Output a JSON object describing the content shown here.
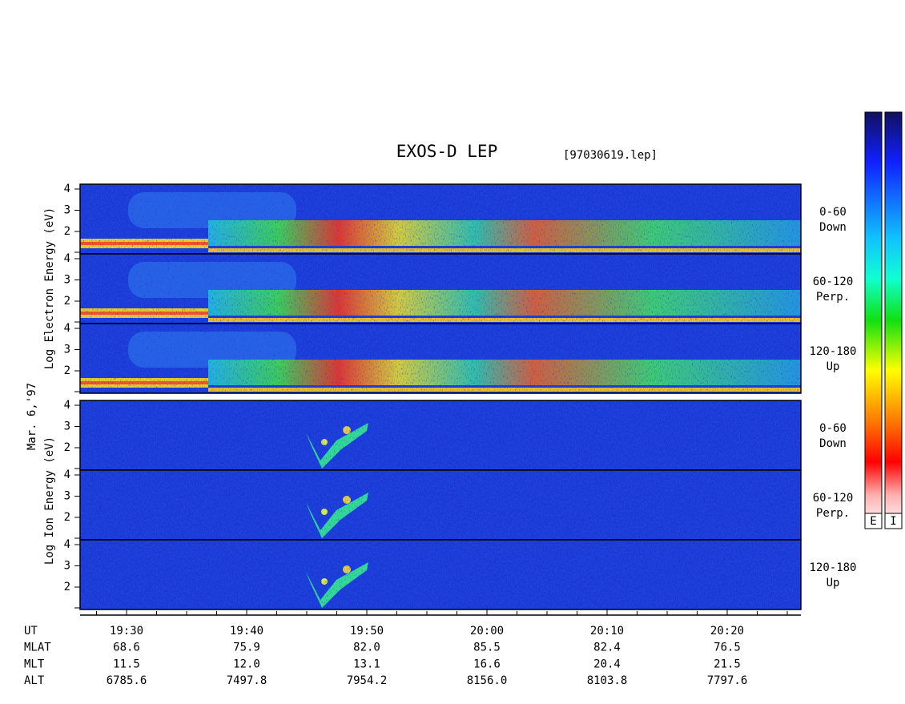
{
  "title": "EXOS-D LEP",
  "file": "[97030619.lep]",
  "date": "Mar. 6,'97",
  "electron_axis_label": "Log Electron Energy (eV)",
  "ion_axis_label": "Log Ion Energy (eV)",
  "panels": [
    {
      "species": "electron",
      "ticks": [
        "4",
        "3",
        "2"
      ],
      "angle": "0-60",
      "direction": "Down"
    },
    {
      "species": "electron",
      "ticks": [
        "4",
        "3",
        "2"
      ],
      "angle": "60-120",
      "direction": "Perp."
    },
    {
      "species": "electron",
      "ticks": [
        "4",
        "3",
        "2"
      ],
      "angle": "120-180",
      "direction": "Up"
    },
    {
      "species": "ion",
      "ticks": [
        "4",
        "3",
        "2"
      ],
      "angle": "0-60",
      "direction": "Down"
    },
    {
      "species": "ion",
      "ticks": [
        "4",
        "3",
        "2"
      ],
      "angle": "60-120",
      "direction": "Perp."
    },
    {
      "species": "ion",
      "ticks": [
        "4",
        "3",
        "2"
      ],
      "angle": "120-180",
      "direction": "Up"
    }
  ],
  "colorbar_labels": [
    "E",
    "I"
  ],
  "time_rows": [
    {
      "name": "UT",
      "values": [
        "19:30",
        "19:40",
        "19:50",
        "20:00",
        "20:10",
        "20:20"
      ]
    },
    {
      "name": "MLAT",
      "values": [
        "68.6",
        "75.9",
        "82.0",
        "85.5",
        "82.4",
        "76.5"
      ]
    },
    {
      "name": "MLT",
      "values": [
        "11.5",
        "12.0",
        "13.1",
        "16.6",
        "20.4",
        "21.5"
      ]
    },
    {
      "name": "ALT",
      "values": [
        "6785.6",
        "7497.8",
        "7954.2",
        "8156.0",
        "8103.8",
        "7797.6"
      ]
    }
  ]
}
